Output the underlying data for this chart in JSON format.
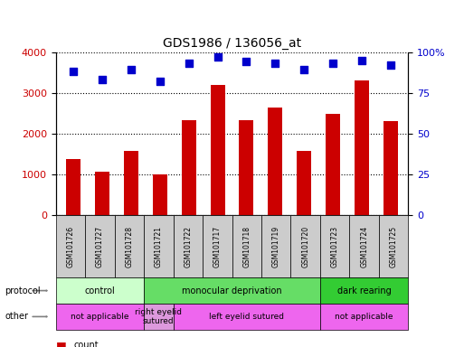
{
  "title": "GDS1986 / 136056_at",
  "samples": [
    "GSM101726",
    "GSM101727",
    "GSM101728",
    "GSM101721",
    "GSM101722",
    "GSM101717",
    "GSM101718",
    "GSM101719",
    "GSM101720",
    "GSM101723",
    "GSM101724",
    "GSM101725"
  ],
  "counts": [
    1380,
    1060,
    1570,
    990,
    2320,
    3190,
    2320,
    2650,
    1570,
    2480,
    3300,
    2300
  ],
  "percentiles": [
    88,
    83,
    89,
    82,
    93,
    97,
    94,
    93,
    89,
    93,
    95,
    92
  ],
  "ylim_left": [
    0,
    4000
  ],
  "ylim_right": [
    0,
    100
  ],
  "yticks_left": [
    0,
    1000,
    2000,
    3000,
    4000
  ],
  "yticks_right": [
    0,
    25,
    50,
    75,
    100
  ],
  "bar_color": "#cc0000",
  "dot_color": "#0000cc",
  "protocol_groups": [
    {
      "label": "control",
      "start": 0,
      "end": 3,
      "color": "#ccffcc"
    },
    {
      "label": "monocular deprivation",
      "start": 3,
      "end": 9,
      "color": "#66dd66"
    },
    {
      "label": "dark rearing",
      "start": 9,
      "end": 12,
      "color": "#33cc33"
    }
  ],
  "other_groups": [
    {
      "label": "not applicable",
      "start": 0,
      "end": 3,
      "color": "#ee66ee"
    },
    {
      "label": "right eyelid\nsutured",
      "start": 3,
      "end": 4,
      "color": "#dd99dd"
    },
    {
      "label": "left eyelid sutured",
      "start": 4,
      "end": 9,
      "color": "#ee66ee"
    },
    {
      "label": "not applicable",
      "start": 9,
      "end": 12,
      "color": "#ee66ee"
    }
  ],
  "tick_bg_color": "#cccccc",
  "legend_count_color": "#cc0000",
  "legend_dot_color": "#0000cc"
}
